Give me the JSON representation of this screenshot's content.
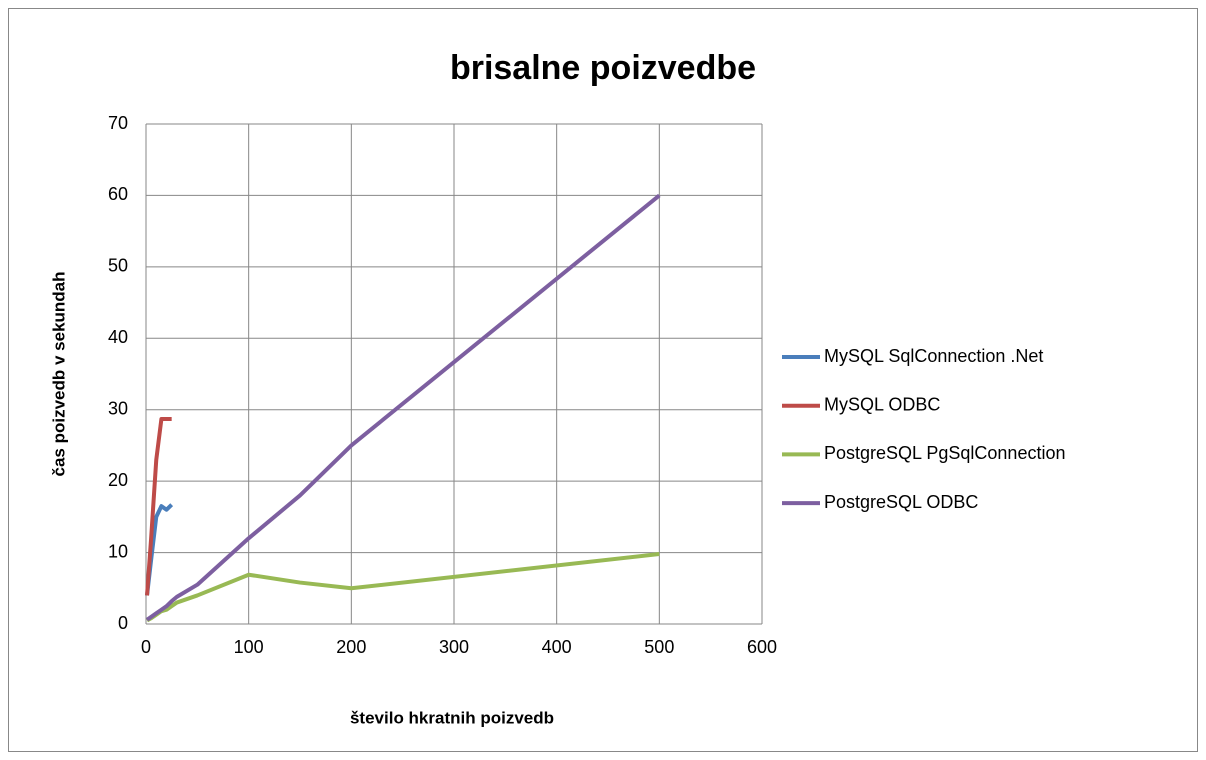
{
  "chart_data": {
    "type": "line",
    "title": "brisalne poizvedbe",
    "xlabel": "število hkratnih poizvedb",
    "ylabel": "čas poizvedb v sekundah",
    "x": [
      1,
      5,
      10,
      15,
      20,
      25,
      30,
      50,
      100,
      150,
      200,
      500
    ],
    "series": [
      {
        "name": "MySQL SqlConnection .Net",
        "color": "#4a7ebb",
        "values": [
          4,
          9,
          15,
          16.5,
          16,
          16.7,
          null,
          null,
          null,
          null,
          null,
          null
        ]
      },
      {
        "name": "MySQL ODBC",
        "color": "#be4b48",
        "values": [
          4,
          12,
          23,
          28.7,
          28.7,
          28.7,
          null,
          null,
          null,
          null,
          null,
          null
        ]
      },
      {
        "name": "PostgreSQL PgSqlConnection",
        "color": "#98b954",
        "values": [
          0.5,
          0.8,
          1.3,
          1.8,
          2,
          2.5,
          3,
          4,
          6.9,
          5.8,
          5,
          9.8
        ]
      },
      {
        "name": "PostgreSQL ODBC",
        "color": "#7d5fa0",
        "values": [
          0.6,
          1,
          1.5,
          2,
          2.5,
          3.2,
          3.8,
          5.5,
          12,
          18,
          25,
          60
        ]
      }
    ],
    "xlim": [
      0,
      600
    ],
    "xticks": [
      0,
      100,
      200,
      300,
      400,
      500,
      600
    ],
    "ylim": [
      0,
      70
    ],
    "yticks": [
      0,
      10,
      20,
      30,
      40,
      50,
      60,
      70
    ],
    "grid": true,
    "legend": "right"
  }
}
